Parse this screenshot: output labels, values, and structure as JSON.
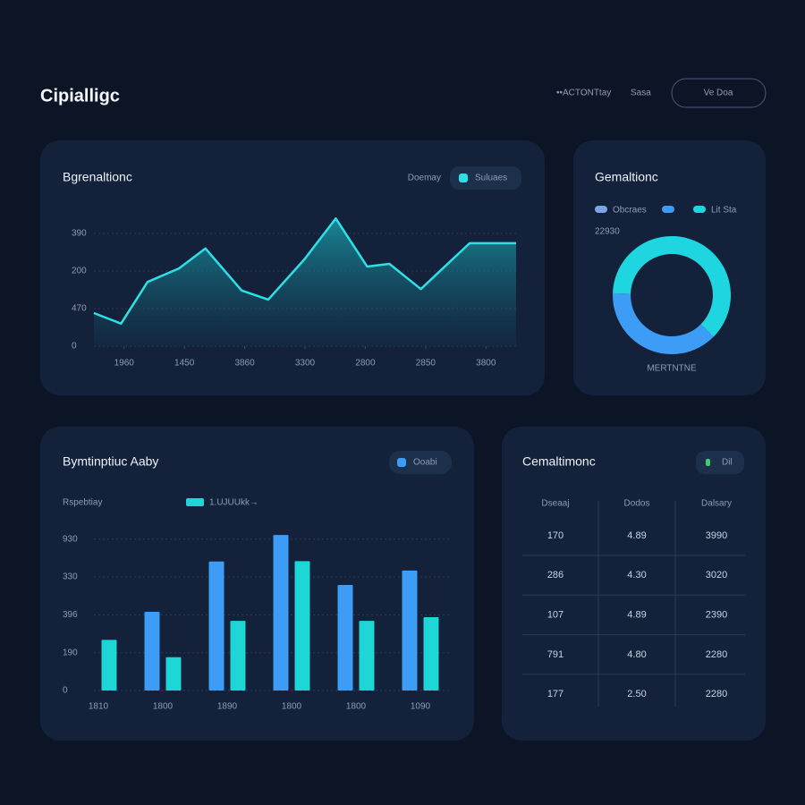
{
  "header": {
    "title": "Cipialligc",
    "nav": [
      "••ACTONTtay",
      "Sasa"
    ],
    "button": "Ve Doa"
  },
  "chart_data": [
    {
      "type": "area",
      "title": "Bgrenaltionc",
      "subtitle": "Doemay",
      "x": [
        0,
        0.45,
        0.89,
        1.41,
        1.85,
        2.45,
        2.89,
        3.49,
        4.01,
        4.53,
        4.9,
        5.42,
        6.23,
        7
      ],
      "series": [
        {
          "name": "Suluaes",
          "color": "#2ee0e6",
          "values": [
            88,
            60,
            171,
            207,
            260,
            148,
            124,
            231,
            340,
            212,
            219,
            152,
            274,
            274
          ]
        }
      ],
      "xlim": [
        0,
        7
      ],
      "xticks": [
        {
          "value": 0.5,
          "label": "1960"
        },
        {
          "value": 1.5,
          "label": "1450"
        },
        {
          "value": 2.5,
          "label": "3860"
        },
        {
          "value": 3.5,
          "label": "3300"
        },
        {
          "value": 4.5,
          "label": "2800"
        },
        {
          "value": 5.5,
          "label": "2850"
        },
        {
          "value": 6.5,
          "label": "3800"
        }
      ],
      "ylim": [
        0,
        350
      ],
      "yticks": [
        0,
        {
          "value": 100,
          "label": "470"
        },
        {
          "value": 200,
          "label": "200"
        },
        {
          "value": 300,
          "label": "390"
        }
      ],
      "grid": true
    },
    {
      "type": "bar",
      "title": "Bymtinptiuc Aaby",
      "subtitle": "Rspebtiay",
      "categories": [
        "1810",
        "1800",
        "1890",
        "1800",
        "1800",
        "1090"
      ],
      "series": [
        {
          "name": "Ooabi",
          "color": "#3d9cf5",
          "values": [
            null,
            208,
            341,
            411,
            279,
            317
          ]
        },
        {
          "name": "1.UJUUkk→",
          "color": "#1fd6d6",
          "values": [
            134,
            88,
            184,
            342,
            184,
            194
          ]
        }
      ],
      "ylim": [
        0,
        420
      ],
      "yticks": [
        0,
        {
          "value": 100,
          "label": "190"
        },
        {
          "value": 200,
          "label": "396"
        },
        {
          "value": 300,
          "label": "330"
        },
        {
          "value": 400,
          "label": "930"
        }
      ],
      "grid": true
    },
    {
      "type": "pie",
      "title": "Gemaltionc",
      "annotation": "22930",
      "note": "MERTNTNE",
      "categories": [
        "Obcraes",
        "Lit Sta"
      ],
      "colors": [
        "#3d9cf5",
        "#1fd6e0"
      ],
      "values": [
        38,
        62
      ]
    }
  ],
  "table": {
    "title": "Cemaltimonc",
    "button": "Dil",
    "columns": [
      "Dseaaj",
      "Dodos",
      "Dalsary"
    ],
    "rows": [
      [
        "170",
        "4.89",
        "3990"
      ],
      [
        "286",
        "4.30",
        "3020"
      ],
      [
        "107",
        "4.89",
        "2390"
      ],
      [
        "791",
        "4.80",
        "2280"
      ],
      [
        "177",
        "2.50",
        "2280"
      ]
    ]
  }
}
